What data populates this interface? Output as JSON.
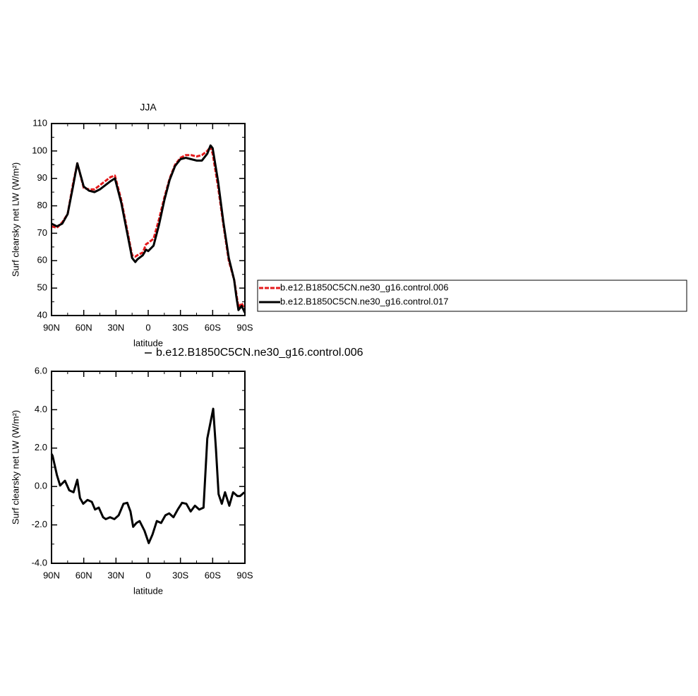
{
  "chart_data": [
    {
      "type": "line",
      "title": "JJA",
      "xlabel": "latitude",
      "ylabel": "Surf clearsky net LW (W/m²)",
      "x": [
        90,
        85,
        80,
        75,
        70,
        66,
        60,
        55,
        50,
        45,
        40,
        35,
        31,
        25,
        20,
        15,
        12,
        10,
        5,
        2,
        0,
        -5,
        -10,
        -15,
        -20,
        -25,
        -30,
        -35,
        -40,
        -45,
        -50,
        -55,
        -58,
        -60,
        -65,
        -70,
        -75,
        -80,
        -82,
        -84,
        -87,
        -90
      ],
      "series": [
        {
          "name": "b.e12.B1850C5CN.ne30_g16.control.006",
          "color": "#e41a1c",
          "dash": true,
          "values": [
            72.5,
            72,
            74,
            77,
            88,
            95.5,
            86.5,
            86,
            86,
            87.5,
            89,
            90.5,
            91,
            82,
            72,
            62,
            61.5,
            62,
            63,
            66,
            66.5,
            68,
            75,
            83,
            90,
            95,
            97.5,
            98.5,
            98.5,
            98,
            98.5,
            100,
            101.5,
            99,
            87,
            73,
            60,
            53,
            48,
            43,
            44.5,
            42
          ]
        },
        {
          "name": "b.e12.B1850C5CN.ne30_g16.control.017",
          "color": "#000000",
          "dash": false,
          "values": [
            73.5,
            72.5,
            73.5,
            77,
            87,
            95.5,
            87,
            85.5,
            85,
            86,
            87.5,
            89,
            90,
            81,
            71,
            61,
            59.5,
            60.5,
            62,
            64,
            63.5,
            65.5,
            73,
            82,
            89.5,
            94.5,
            97,
            97.5,
            97,
            96.5,
            96.5,
            99,
            102,
            101,
            89,
            74,
            61,
            53,
            47,
            42,
            43.5,
            41
          ]
        }
      ],
      "xlim": [
        90,
        -90
      ],
      "xticks": [
        {
          "value": 90,
          "label": "90N"
        },
        {
          "value": 60,
          "label": "60N"
        },
        {
          "value": 30,
          "label": "30N"
        },
        0,
        {
          "value": -30,
          "label": "30S"
        },
        {
          "value": -60,
          "label": "60S"
        },
        {
          "value": -90,
          "label": "90S"
        }
      ],
      "ylim": [
        40,
        110
      ],
      "yticks": [
        40,
        50,
        60,
        70,
        80,
        90,
        100,
        110
      ]
    },
    {
      "type": "line",
      "xlabel": "latitude",
      "ylabel": "Surf clearsky net LW (W/m²)",
      "x": [
        90,
        89,
        85,
        82,
        77.5,
        73.5,
        69.5,
        66,
        63.5,
        60.5,
        56.5,
        52.5,
        49.5,
        46,
        42,
        39.5,
        35.5,
        31.5,
        27.5,
        23,
        19.5,
        16.5,
        14,
        11,
        8,
        3.5,
        -0.5,
        -4,
        -8,
        -12,
        -16,
        -19.5,
        -23.5,
        -27.5,
        -31.5,
        -35.5,
        -39.5,
        -43.5,
        -47.5,
        -51.5,
        -55,
        -60.5,
        -63,
        -65.5,
        -68.5,
        -71.5,
        -75.5,
        -79,
        -83,
        -85.5,
        -89.5
      ],
      "series": [
        {
          "name": "b.e12.B1850C5CN.ne30_g16.control.006",
          "color": "#000000",
          "dash": false,
          "values": [
            1.7,
            1.6,
            0.6,
            0.05,
            0.3,
            -0.2,
            -0.3,
            0.35,
            -0.6,
            -0.9,
            -0.7,
            -0.8,
            -1.2,
            -1.1,
            -1.6,
            -1.7,
            -1.6,
            -1.7,
            -1.5,
            -0.9,
            -0.85,
            -1.3,
            -2.1,
            -1.9,
            -1.8,
            -2.3,
            -2.95,
            -2.5,
            -1.8,
            -1.9,
            -1.5,
            -1.4,
            -1.6,
            -1.2,
            -0.85,
            -0.9,
            -1.3,
            -1.0,
            -1.2,
            -1.1,
            2.5,
            4.05,
            2.0,
            -0.4,
            -0.9,
            -0.3,
            -1.0,
            -0.3,
            -0.5,
            -0.5,
            -0.3
          ]
        }
      ],
      "xlim": [
        90,
        -90
      ],
      "xticks": [
        {
          "value": 90,
          "label": "90N"
        },
        {
          "value": 60,
          "label": "60N"
        },
        {
          "value": 30,
          "label": "30N"
        },
        0,
        {
          "value": -30,
          "label": "30S"
        },
        {
          "value": -60,
          "label": "60S"
        },
        {
          "value": -90,
          "label": "90S"
        }
      ],
      "ylim": [
        -4,
        6
      ],
      "yticks": [
        {
          "value": -4,
          "label": "-4.0"
        },
        {
          "value": -2,
          "label": "-2.0"
        },
        {
          "value": 0,
          "label": "0.0"
        },
        {
          "value": 2,
          "label": "2.0"
        },
        {
          "value": 4,
          "label": "4.0"
        },
        {
          "value": 6,
          "label": "6.0"
        }
      ]
    }
  ]
}
